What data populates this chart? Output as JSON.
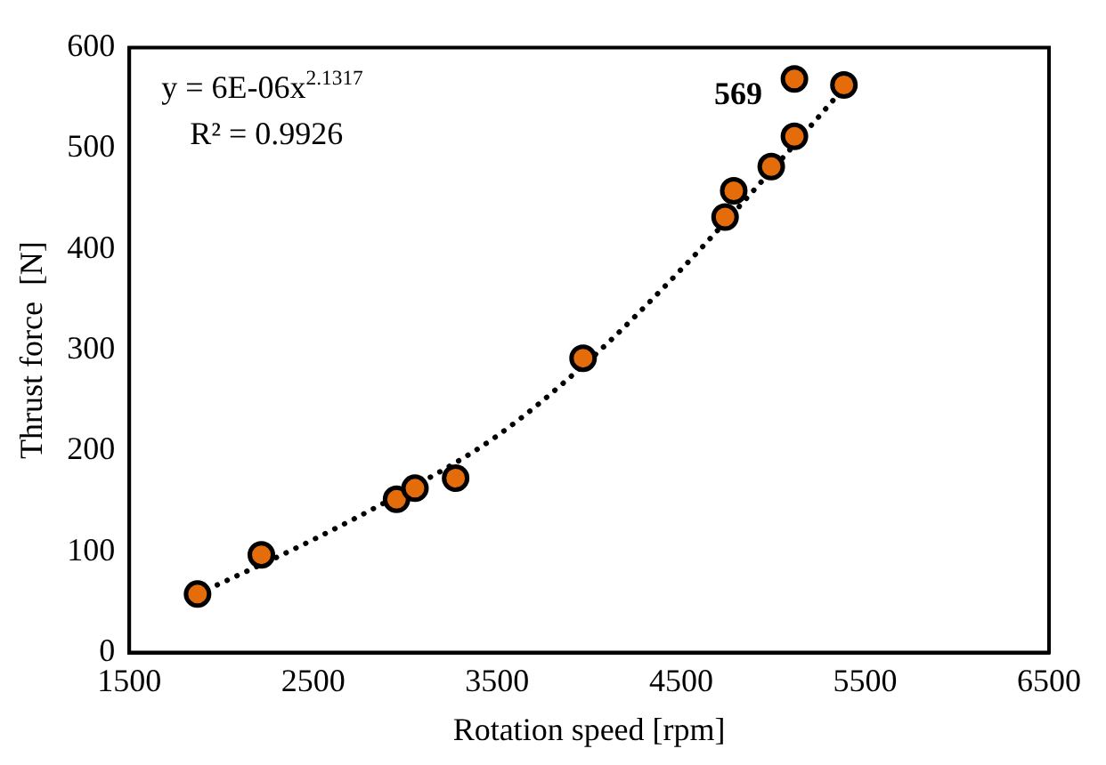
{
  "chart_data": {
    "type": "scatter",
    "xlabel": "Rotation speed [rpm]",
    "ylabel": "Thrust force  [N]",
    "xlim": [
      1500,
      6500
    ],
    "xticks": [
      1500,
      2500,
      3500,
      4500,
      5500,
      6500
    ],
    "ylim": [
      0,
      600
    ],
    "yticks": [
      0,
      100,
      200,
      300,
      400,
      500,
      600
    ],
    "grid": false,
    "legend": false,
    "marker": "circle",
    "series": [
      {
        "color": "#e46c0a",
        "x": [
          1871,
          2218,
          2953,
          3053,
          3274,
          3967,
          4739,
          4786,
          4990,
          5116,
          5116,
          5385
        ],
        "values": [
          58,
          97,
          152,
          163,
          173,
          292,
          432,
          458,
          482,
          512,
          569,
          563
        ]
      },
      {
        "type": "line",
        "color": "#000000",
        "line_style": "dotted",
        "marker": "none",
        "x": [
          1871,
          2500,
          3000,
          3500,
          4000,
          4500,
          5000,
          5385
        ],
        "values": [
          58,
          112,
          160,
          215,
          290,
          380,
          480,
          560
        ]
      }
    ],
    "annotations": [
      "y = 6E-06x$^{2.1317}$",
      "R² = 0.9926",
      {
        "text": "569",
        "x": 5116,
        "y": 569
      }
    ]
  }
}
